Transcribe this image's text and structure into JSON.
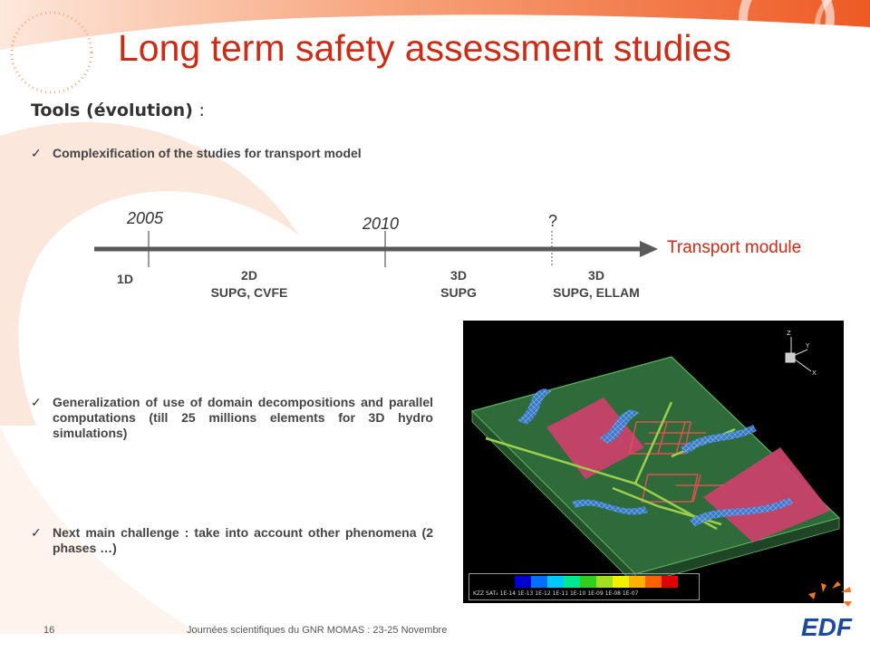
{
  "title": "Long term safety assessment studies",
  "subtitle": {
    "text": "Tools (évolution)",
    "colon": ":"
  },
  "bullets": [
    "Complexification of the studies for transport model",
    "Generalization of use of domain decompositions and parallel computations (till 25 millions elements for 3D hydro simulations)",
    "Next main challenge : take into account other phenomena (2 phases …)"
  ],
  "timeline": {
    "years": {
      "y2005": "2005",
      "y2010": "2010",
      "unknown": "?"
    },
    "arrow_label": "Transport module",
    "stages": [
      {
        "line1": "1D",
        "line2": ""
      },
      {
        "line1": "2D",
        "line2": "SUPG, CVFE"
      },
      {
        "line1": "3D",
        "line2": "SUPG"
      },
      {
        "line1": "3D",
        "line2": "SUPG, ELLAM"
      }
    ]
  },
  "figure": {
    "axes": {
      "z": "Z",
      "y": "Y",
      "x": "X"
    },
    "legend": {
      "title": "KZZ SAT₄",
      "ticks": [
        "1E-14",
        "1E-13",
        "1E-12",
        "1E-11",
        "1E-10",
        "1E-09",
        "1E-08",
        "1E-07"
      ],
      "colors": [
        "#0000d0",
        "#0070ff",
        "#00c8ff",
        "#00e890",
        "#30d020",
        "#a0e020",
        "#f0f000",
        "#ffb000",
        "#ff6000",
        "#e00000"
      ]
    }
  },
  "footer": {
    "page_number": "16",
    "text": "Journées scientifiques du GNR MOMAS : 23-25 Novembre"
  },
  "logo": {
    "text": "EDF"
  }
}
